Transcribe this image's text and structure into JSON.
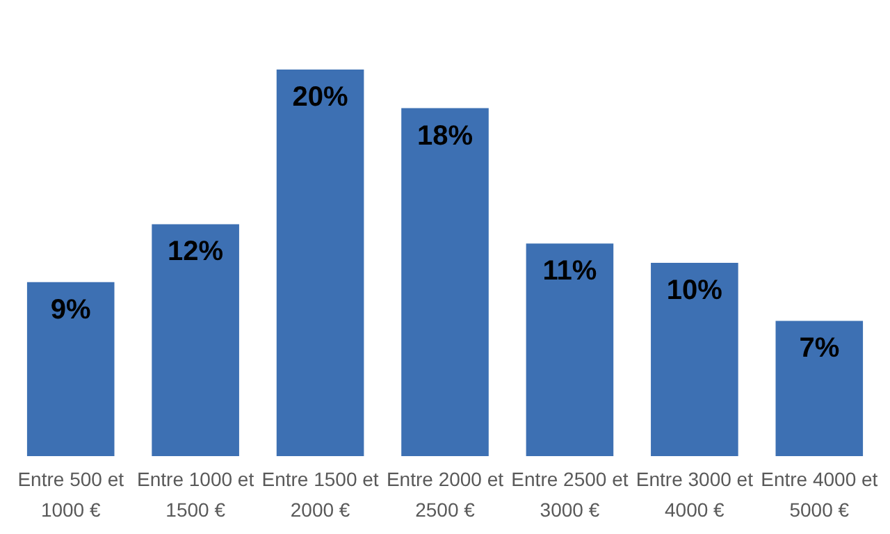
{
  "chart_data": {
    "type": "bar",
    "categories": [
      "Entre 500 et 1000 €",
      "Entre 1000 et 1500 €",
      "Entre 1500 et 2000 €",
      "Entre 2000 et 2500 €",
      "Entre 2500 et 3000 €",
      "Entre 3000 et 4000 €",
      "Entre 4000 et 5000 €"
    ],
    "values": [
      9,
      12,
      20,
      18,
      11,
      10,
      7
    ],
    "value_labels": [
      "9%",
      "12%",
      "20%",
      "18%",
      "11%",
      "10%",
      "7%"
    ],
    "color": "#3d70b3",
    "grid": false
  }
}
